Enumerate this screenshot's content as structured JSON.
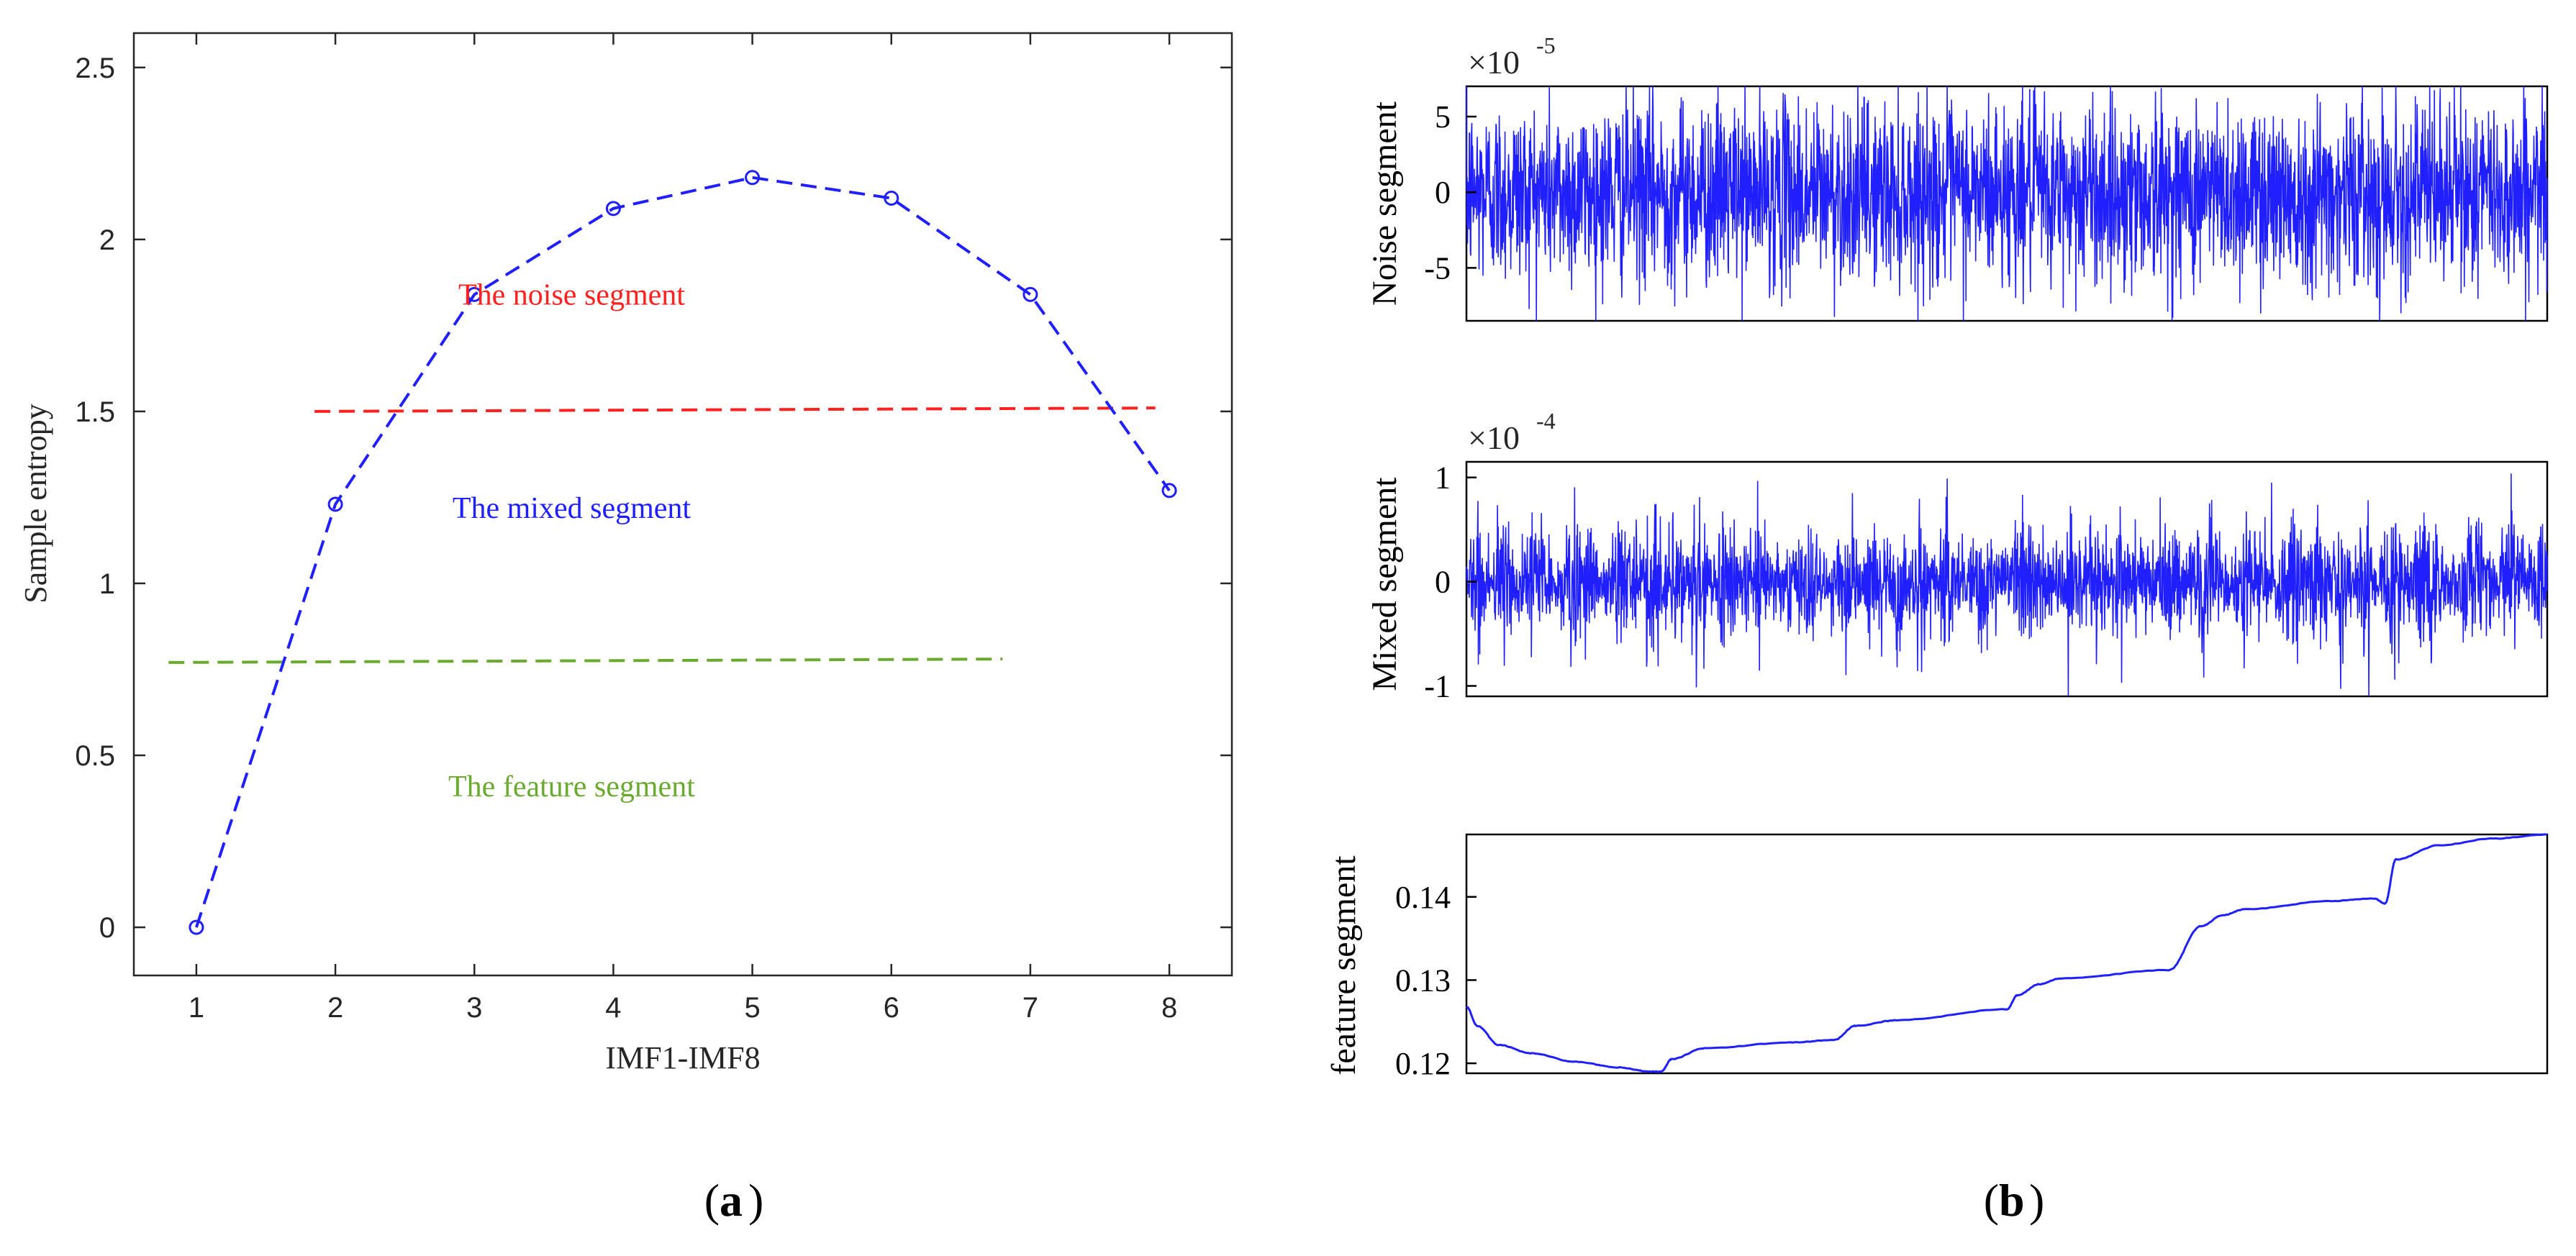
{
  "chart_data": [
    {
      "id": "a",
      "panel_label": "a",
      "type": "line",
      "xlabel": "IMF1-IMF8",
      "ylabel": "Sample entropy",
      "xlim": [
        0.55,
        8.45
      ],
      "ylim": [
        -0.14,
        2.6
      ],
      "x_ticks": [
        1,
        2,
        3,
        4,
        5,
        6,
        7,
        8
      ],
      "y_ticks": [
        0,
        0.5,
        1,
        1.5,
        2,
        2.5
      ],
      "y_tick_labels": [
        "0",
        "0.5",
        "1",
        "1.5",
        "2",
        "2.5"
      ],
      "series": [
        {
          "name": "Sample entropy",
          "color": "#1f1fff",
          "style": "dashed-circle-markers",
          "x": [
            1,
            2,
            3,
            4,
            5,
            6,
            7,
            8
          ],
          "y": [
            0.0,
            1.23,
            1.84,
            2.09,
            2.18,
            2.12,
            1.84,
            1.27
          ]
        }
      ],
      "reference_lines": [
        {
          "name": "noise-threshold",
          "color": "#ff2020",
          "x": [
            1.85,
            7.9
          ],
          "y": [
            1.5,
            1.51
          ]
        },
        {
          "name": "feature-threshold",
          "color": "#6aaa2f",
          "x": [
            0.8,
            6.8
          ],
          "y": [
            0.77,
            0.78
          ]
        }
      ],
      "annotations": [
        {
          "text": "The noise segment",
          "color": "#ff2020",
          "x": 3.7,
          "y": 1.84
        },
        {
          "text": "The mixed segment",
          "color": "#1f1fff",
          "x": 3.7,
          "y": 1.22
        },
        {
          "text": "The feature segment",
          "color": "#6aaa2f",
          "x": 3.7,
          "y": 0.41
        }
      ]
    },
    {
      "id": "b-noise",
      "panel_label": "b",
      "type": "line",
      "ylabel": "Noise segment",
      "exponent_label": "×10",
      "exponent_power": "-5",
      "ylim": [
        -8.5,
        7
      ],
      "y_ticks": [
        -5,
        0,
        5
      ],
      "y_tick_labels": [
        "-5",
        "0",
        "5"
      ],
      "color": "#1f1fff",
      "signal": {
        "kind": "random-noise",
        "amplitude": 3.0,
        "peak": 8.5,
        "samples": 3000
      }
    },
    {
      "id": "b-mixed",
      "type": "line",
      "ylabel": "Mixed segment",
      "exponent_label": "×10",
      "exponent_power": "-4",
      "ylim": [
        -1.1,
        1.15
      ],
      "y_ticks": [
        -1,
        0,
        1
      ],
      "y_tick_labels": [
        "-1",
        "0",
        "1"
      ],
      "color": "#1f1fff",
      "signal": {
        "kind": "bursty-noise",
        "amplitude": 0.35,
        "peak": 1.12,
        "samples": 3000
      }
    },
    {
      "id": "b-feature",
      "type": "line",
      "ylabel": "feature segment",
      "ylim": [
        0.1188,
        0.1475
      ],
      "y_ticks": [
        0.12,
        0.13,
        0.14
      ],
      "y_tick_labels": [
        "0.12",
        "0.13",
        "0.14"
      ],
      "color": "#1f1fff",
      "x": [
        0,
        0.01,
        0.03,
        0.06,
        0.1,
        0.14,
        0.17,
        0.18,
        0.19,
        0.22,
        0.3,
        0.34,
        0.36,
        0.4,
        0.5,
        0.51,
        0.53,
        0.55,
        0.65,
        0.68,
        0.7,
        0.72,
        0.8,
        0.84,
        0.85,
        0.86,
        0.9,
        0.95,
        1.0
      ],
      "y": [
        0.1268,
        0.1245,
        0.1222,
        0.1212,
        0.1202,
        0.1195,
        0.119,
        0.119,
        0.1205,
        0.1218,
        0.1225,
        0.1228,
        0.1245,
        0.1252,
        0.1265,
        0.1282,
        0.1295,
        0.1302,
        0.1312,
        0.1365,
        0.1378,
        0.1385,
        0.1395,
        0.1398,
        0.1392,
        0.1445,
        0.1462,
        0.147,
        0.1475
      ]
    }
  ]
}
